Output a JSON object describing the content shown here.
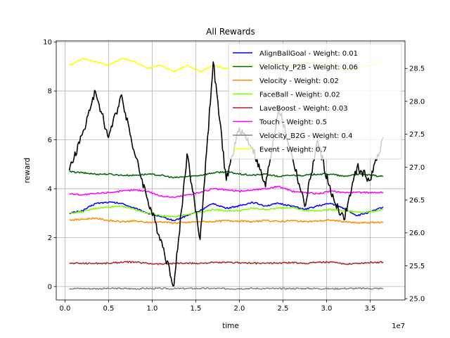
{
  "chart_data": {
    "type": "line",
    "title": "All Rewards",
    "xlabel": "time",
    "ylabel": "reward",
    "x_offset_label": "1e7",
    "xlim": [
      -0.1,
      3.9
    ],
    "ylim": [
      -0.55,
      10.05
    ],
    "y2lim": [
      24.98,
      28.92
    ],
    "grid": true,
    "legend_position": "top-right",
    "xticks": [
      0.0,
      0.5,
      1.0,
      1.5,
      2.0,
      2.5,
      3.0,
      3.5
    ],
    "xtick_labels": [
      "0.0",
      "0.5",
      "1.0",
      "1.5",
      "2.0",
      "2.5",
      "3.0",
      "3.5"
    ],
    "yticks": [
      0,
      2,
      4,
      6,
      8,
      10
    ],
    "ytick_labels": [
      "0",
      "2",
      "4",
      "6",
      "8",
      "10"
    ],
    "y2ticks": [
      25.0,
      25.5,
      26.0,
      26.5,
      27.0,
      27.5,
      28.0,
      28.5
    ],
    "y2tick_labels": [
      "25.0",
      "25.5",
      "26.0",
      "26.5",
      "27.0",
      "27.5",
      "28.0",
      "28.5"
    ],
    "x": [
      0.05,
      0.2,
      0.35,
      0.5,
      0.65,
      0.8,
      0.95,
      1.1,
      1.25,
      1.4,
      1.55,
      1.7,
      1.85,
      2.0,
      2.15,
      2.3,
      2.45,
      2.6,
      2.75,
      2.9,
      3.05,
      3.2,
      3.35,
      3.5,
      3.65
    ],
    "series": [
      {
        "name": "AlignBallGoal - Weight: 0.01",
        "color": "#0000ff",
        "axis": "left",
        "values": [
          3.0,
          3.1,
          3.4,
          3.45,
          3.4,
          3.2,
          3.0,
          2.85,
          2.7,
          2.9,
          3.1,
          3.4,
          3.2,
          3.3,
          3.45,
          3.3,
          3.4,
          3.3,
          3.15,
          3.3,
          3.4,
          3.2,
          2.9,
          3.05,
          3.25
        ]
      },
      {
        "name": "Velolicty_P2B - Weight: 0.06",
        "color": "#006400",
        "axis": "left",
        "values": [
          4.7,
          4.65,
          4.6,
          4.6,
          4.55,
          4.55,
          4.6,
          4.55,
          4.45,
          4.5,
          4.55,
          4.65,
          4.7,
          4.6,
          4.55,
          4.6,
          4.5,
          4.55,
          4.55,
          4.6,
          4.6,
          4.5,
          4.6,
          4.55,
          4.5
        ]
      },
      {
        "name": "Velocity - Weight: 0.02",
        "color": "#ff8c00",
        "axis": "left",
        "values": [
          2.72,
          2.75,
          2.8,
          2.7,
          2.65,
          2.68,
          2.62,
          2.65,
          2.6,
          2.62,
          2.66,
          2.65,
          2.7,
          2.68,
          2.65,
          2.7,
          2.66,
          2.7,
          2.65,
          2.68,
          2.72,
          2.65,
          2.6,
          2.62,
          2.62
        ]
      },
      {
        "name": "FaceBall - Weight: 0.02",
        "color": "#7cfc00",
        "axis": "left",
        "values": [
          3.0,
          3.05,
          3.2,
          3.25,
          3.3,
          3.15,
          3.0,
          2.9,
          2.85,
          2.95,
          3.05,
          3.15,
          3.1,
          3.1,
          3.2,
          3.15,
          3.2,
          3.25,
          3.1,
          3.1,
          3.15,
          3.1,
          3.05,
          3.05,
          3.15
        ]
      },
      {
        "name": "LaveBoost - Weight: 0.03",
        "color": "#b22222",
        "axis": "left",
        "values": [
          0.95,
          0.95,
          0.95,
          0.95,
          1.0,
          1.0,
          0.95,
          0.92,
          0.95,
          0.95,
          0.95,
          0.98,
          0.98,
          0.98,
          0.95,
          0.95,
          0.96,
          0.98,
          0.95,
          1.0,
          1.0,
          0.92,
          0.95,
          0.98,
          1.0
        ]
      },
      {
        "name": "Touch - Weight: 0.5",
        "color": "#ff00ff",
        "axis": "left",
        "values": [
          3.8,
          3.75,
          3.8,
          3.85,
          3.9,
          3.95,
          3.9,
          3.7,
          3.65,
          3.75,
          3.85,
          4.0,
          3.95,
          3.9,
          3.95,
          4.0,
          4.1,
          3.9,
          3.85,
          3.8,
          3.9,
          3.85,
          3.85,
          3.85,
          3.85
        ]
      },
      {
        "name": "Velocity_B2G - Weight: 0.4",
        "color": "#808080",
        "axis": "left",
        "values": [
          -0.08,
          -0.08,
          -0.09,
          -0.08,
          -0.08,
          -0.09,
          -0.08,
          -0.08,
          -0.09,
          -0.08,
          -0.08,
          -0.08,
          -0.09,
          -0.08,
          -0.08,
          -0.08,
          -0.09,
          -0.08,
          -0.08,
          -0.08,
          -0.09,
          -0.08,
          -0.08,
          -0.08,
          -0.08
        ]
      },
      {
        "name": "Event - Weight: 0.7",
        "color": "#ffff00",
        "axis": "right",
        "values": [
          28.55,
          28.65,
          28.6,
          28.55,
          28.65,
          28.6,
          28.5,
          28.55,
          28.45,
          28.55,
          28.45,
          28.55,
          28.5,
          28.6,
          28.55,
          28.55,
          28.6,
          28.5,
          28.6,
          28.55,
          28.55,
          28.5,
          28.5,
          28.55,
          28.6
        ]
      },
      {
        "name": "",
        "color": "#000000",
        "axis": "right",
        "values": [
          26.95,
          27.5,
          28.15,
          27.45,
          28.1,
          27.2,
          26.5,
          25.9,
          25.2,
          27.2,
          25.9,
          28.6,
          26.8,
          27.6,
          27.3,
          26.7,
          27.9,
          27.2,
          26.4,
          27.4,
          26.6,
          26.2,
          27.0,
          26.8,
          27.45
        ]
      }
    ]
  }
}
